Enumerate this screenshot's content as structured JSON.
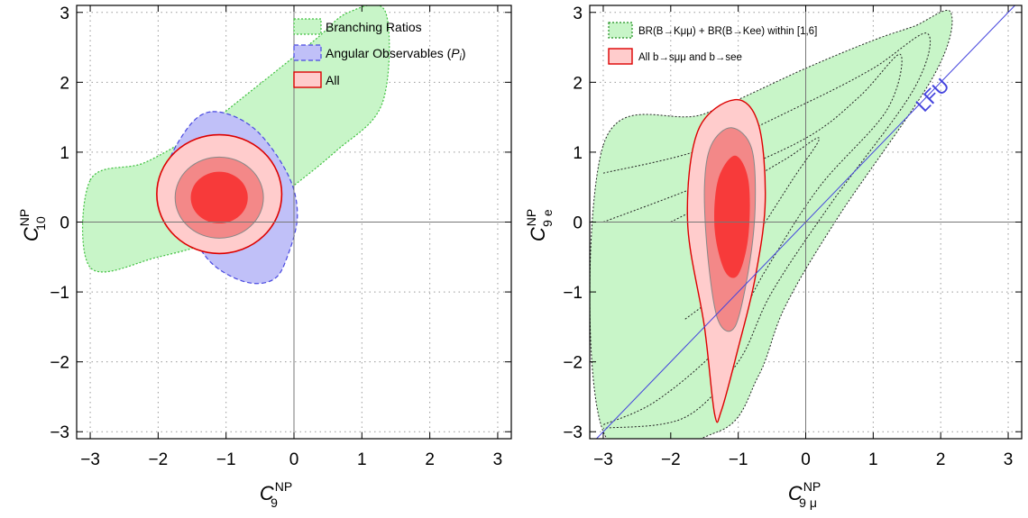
{
  "chart_data": [
    {
      "type": "contour",
      "xlim": [
        -3.2,
        3.2
      ],
      "ylim": [
        -3.1,
        3.1
      ],
      "x_ticks": [
        -3,
        -2,
        -1,
        0,
        1,
        2,
        3
      ],
      "y_ticks": [
        -3,
        -2,
        -1,
        0,
        1,
        2,
        3
      ],
      "x_tick_labels": [
        "−3",
        "−2",
        "−1",
        "0",
        "1",
        "2",
        "3"
      ],
      "y_tick_labels": [
        "−3",
        "−2",
        "−1",
        "0",
        "1",
        "2",
        "3"
      ],
      "xlabel": {
        "base": "C",
        "sup": "NP",
        "sub": "9"
      },
      "ylabel": {
        "base": "C",
        "sup": "NP",
        "sub": "10"
      },
      "grid": true,
      "legend_position": "top-right",
      "legend": [
        {
          "label": "Branching Ratios",
          "style": "green-dotted"
        },
        {
          "label_prefix": "Angular Observables (",
          "label_var": "P",
          "label_sub": "i",
          "label_suffix": ")",
          "style": "blue-dashed"
        },
        {
          "label": "All",
          "style": "red-solid"
        }
      ],
      "colors": {
        "green_fill": "#c8f5c8",
        "green_line": "#3fbf3f",
        "blue_fill": "#c0c0f8",
        "blue_line": "#4848e0",
        "red1": "#ffcccc",
        "red2": "#f38888",
        "red3": "#f73a3a",
        "red_line": "#dd0000",
        "red_inner_line": "#888888"
      },
      "regions": {
        "branching_ratios": [
          [
            -3.0,
            0.6
          ],
          [
            -2.2,
            0.85
          ],
          [
            -1.4,
            1.3
          ],
          [
            -0.6,
            1.9
          ],
          [
            0.3,
            2.6
          ],
          [
            0.8,
            3.0
          ],
          [
            1.35,
            3.0
          ],
          [
            1.3,
            1.7
          ],
          [
            0.6,
            1.0
          ],
          [
            -0.3,
            0.3
          ],
          [
            -1.0,
            -0.2
          ],
          [
            -2.0,
            -0.5
          ],
          [
            -3.0,
            -0.65
          ]
        ],
        "angular_observables": [
          [
            -1.2,
            1.58
          ],
          [
            -0.6,
            1.35
          ],
          [
            -0.1,
            0.7
          ],
          [
            0.05,
            0.1
          ],
          [
            -0.1,
            -0.5
          ],
          [
            -0.3,
            -0.82
          ],
          [
            -0.7,
            -0.86
          ],
          [
            -1.2,
            -0.6
          ],
          [
            -1.55,
            -0.1
          ],
          [
            -1.9,
            0.6
          ],
          [
            -1.6,
            1.3
          ]
        ],
        "all_1sigma": {
          "center": [
            -1.1,
            0.35
          ],
          "rx": 0.42,
          "ry": 0.37
        },
        "all_2sigma": {
          "center": [
            -1.1,
            0.35
          ],
          "rx": 0.65,
          "ry": 0.58
        },
        "all_3sigma": {
          "center": [
            -1.1,
            0.4
          ],
          "rx": 0.92,
          "ry": 0.85
        }
      }
    },
    {
      "type": "contour",
      "xlim": [
        -3.2,
        3.2
      ],
      "ylim": [
        -3.1,
        3.1
      ],
      "x_ticks": [
        -3,
        -2,
        -1,
        0,
        1,
        2,
        3
      ],
      "y_ticks": [
        -3,
        -2,
        -1,
        0,
        1,
        2,
        3
      ],
      "x_tick_labels": [
        "−3",
        "−2",
        "−1",
        "0",
        "1",
        "2",
        "3"
      ],
      "y_tick_labels": [
        "−3",
        "−2",
        "−1",
        "0",
        "1",
        "2",
        "3"
      ],
      "xlabel": {
        "base": "C",
        "sup": "NP",
        "sub": "9 μ"
      },
      "ylabel": {
        "base": "C",
        "sup": "NP",
        "sub": "9 e"
      },
      "grid": true,
      "legend_position": "top-left",
      "legend": [
        {
          "label": "BR(B→Kμμ) + BR(B→Kee) within [1,6]",
          "style": "green-dotted"
        },
        {
          "label": "All b→sμμ and b→see",
          "style": "red-solid"
        }
      ],
      "annotations": [
        {
          "text": "LFU",
          "x": 1.95,
          "y": 1.75,
          "rotation": -45
        }
      ],
      "lfu_line": {
        "from": [
          -3.1,
          -3.1
        ],
        "to": [
          3.1,
          3.1
        ]
      },
      "colors": {
        "green_fill": "#c8f5c8",
        "green_line": "#3fbf3f",
        "red1": "#ffcccc",
        "red2": "#f38888",
        "red3": "#f73a3a",
        "red_line": "#dd0000",
        "lfu": "#4444dd"
      },
      "regions": {
        "br_region": [
          [
            -3.0,
            1.1
          ],
          [
            -1.5,
            1.55
          ],
          [
            0.0,
            2.2
          ],
          [
            1.0,
            2.6
          ],
          [
            1.6,
            2.8
          ],
          [
            2.15,
            3.0
          ],
          [
            1.9,
            2.1
          ],
          [
            0.5,
            0.1
          ],
          [
            -0.3,
            -1.2
          ],
          [
            -0.7,
            -2.2
          ],
          [
            -1.3,
            -3.0
          ],
          [
            -3.0,
            -3.0
          ]
        ],
        "br_inner_contours": [
          [
            [
              -3.0,
              0.0
            ],
            [
              -1.5,
              0.55
            ],
            [
              0.0,
              1.2
            ],
            [
              0.8,
              1.8
            ],
            [
              1.4,
              2.4
            ],
            [
              1.2,
              1.6
            ],
            [
              0.2,
              0.5
            ],
            [
              -0.6,
              -0.7
            ],
            [
              -1.2,
              -1.7
            ],
            [
              -2.2,
              -2.55
            ],
            [
              -3.0,
              -2.9
            ]
          ],
          [
            [
              -3.0,
              0.7
            ],
            [
              -1.5,
              1.05
            ],
            [
              0.0,
              1.7
            ],
            [
              1.0,
              2.2
            ],
            [
              1.8,
              2.7
            ],
            [
              1.6,
              1.9
            ],
            [
              0.4,
              0.3
            ],
            [
              -0.5,
              -1.0
            ],
            [
              -1.0,
              -2.0
            ],
            [
              -1.8,
              -2.8
            ],
            [
              -3.0,
              -2.95
            ]
          ],
          [
            [
              -2.0,
              0.0
            ],
            [
              -1.2,
              0.4
            ],
            [
              -0.3,
              0.9
            ],
            [
              0.2,
              1.2
            ],
            [
              -0.2,
              0.6
            ],
            [
              -0.8,
              -0.3
            ],
            [
              -1.3,
              -1.0
            ],
            [
              -1.8,
              -1.4
            ]
          ]
        ],
        "all_outer": [
          [
            -1.05,
            1.75
          ],
          [
            -0.7,
            1.4
          ],
          [
            -0.6,
            0.3
          ],
          [
            -0.75,
            -0.8
          ],
          [
            -1.0,
            -1.8
          ],
          [
            -1.25,
            -2.7
          ],
          [
            -1.35,
            -2.75
          ],
          [
            -1.5,
            -1.5
          ],
          [
            -1.75,
            0.0
          ],
          [
            -1.6,
            1.3
          ]
        ],
        "all_mid": [
          [
            -1.1,
            1.35
          ],
          [
            -0.8,
            1.05
          ],
          [
            -0.75,
            0.2
          ],
          [
            -0.85,
            -0.7
          ],
          [
            -1.05,
            -1.5
          ],
          [
            -1.3,
            -1.4
          ],
          [
            -1.45,
            -0.5
          ],
          [
            -1.5,
            0.5
          ],
          [
            -1.4,
            1.1
          ]
        ],
        "all_inner": [
          [
            -1.05,
            0.95
          ],
          [
            -0.85,
            0.6
          ],
          [
            -0.85,
            -0.2
          ],
          [
            -1.0,
            -0.75
          ],
          [
            -1.2,
            -0.7
          ],
          [
            -1.35,
            -0.1
          ],
          [
            -1.3,
            0.6
          ]
        ]
      }
    }
  ]
}
